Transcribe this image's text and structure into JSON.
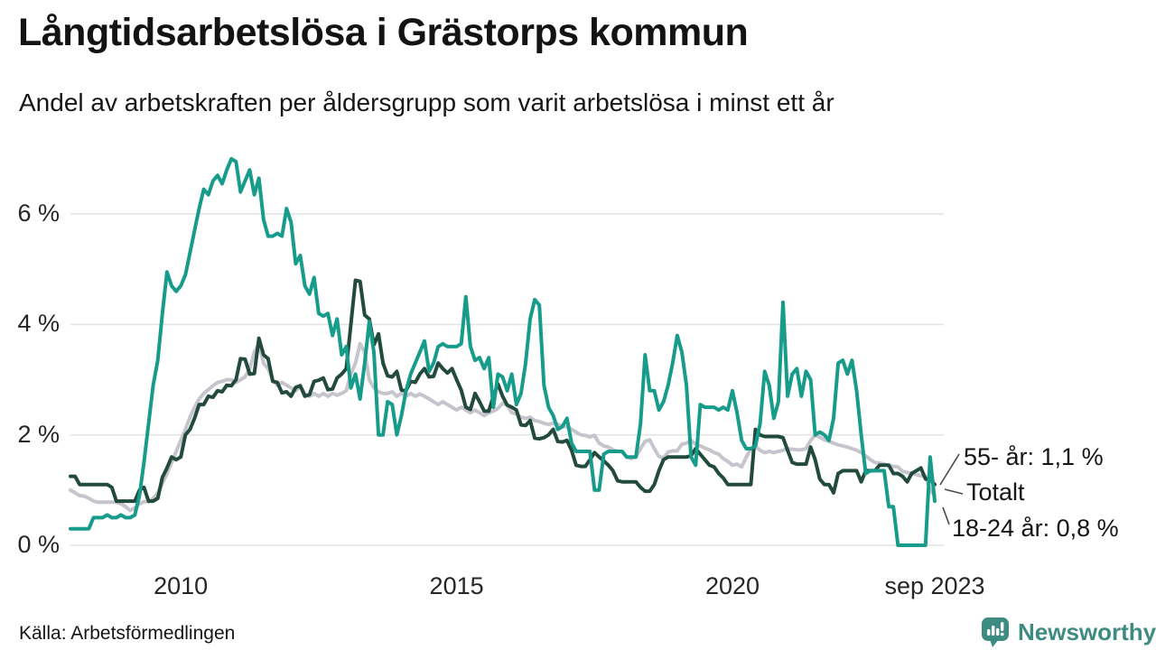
{
  "header": {
    "title": "Långtidsarbetslösa i Grästorps kommun",
    "subtitle": "Andel av arbetskraften per åldersgrupp som varit arbetslösa i minst ett år"
  },
  "footer": {
    "source": "Källa: Arbetsförmedlingen",
    "brand": "Newsworthy",
    "brand_color": "#3e8b81"
  },
  "colors": {
    "grid": "#e4e4e4",
    "leader": "#4a4a4a",
    "teal": "#179c8b",
    "dark_green": "#224a3d",
    "gray": "#c6c4cc"
  },
  "chart_data": {
    "type": "line",
    "title": "Långtidsarbetslösa i Grästorps kommun",
    "x_unit": "month",
    "x_start": "2008-01",
    "x_end": "2023-09",
    "ylim": [
      0,
      7.2
    ],
    "grid": true,
    "legend_position": "end-of-line-labels",
    "yticks": [
      {
        "label": "0 %",
        "value": 0
      },
      {
        "label": "2 %",
        "value": 2
      },
      {
        "label": "4 %",
        "value": 4
      },
      {
        "label": "6 %",
        "value": 6
      }
    ],
    "xticks": [
      {
        "label": "2010",
        "index": 24
      },
      {
        "label": "2015",
        "index": 84
      },
      {
        "label": "2020",
        "index": 144
      },
      {
        "label": "sep 2023",
        "index": 188
      }
    ],
    "series": [
      {
        "name": "Totalt",
        "color": "#c6c4cc",
        "end_label": "Totalt",
        "values": [
          1.0,
          0.95,
          0.9,
          0.89,
          0.85,
          0.8,
          0.78,
          0.78,
          0.78,
          0.78,
          0.78,
          0.75,
          0.7,
          0.63,
          0.68,
          0.75,
          0.79,
          0.79,
          0.85,
          0.95,
          1.12,
          1.3,
          1.5,
          1.7,
          1.9,
          2.1,
          2.32,
          2.5,
          2.65,
          2.75,
          2.82,
          2.89,
          2.95,
          2.97,
          3.0,
          3.0,
          2.95,
          3.0,
          3.05,
          3.2,
          3.5,
          3.65,
          3.3,
          3.2,
          3.0,
          2.9,
          2.95,
          2.9,
          2.85,
          2.8,
          2.88,
          2.75,
          2.7,
          2.75,
          2.7,
          2.75,
          2.7,
          2.75,
          2.72,
          2.75,
          2.8,
          3.1,
          3.3,
          3.65,
          3.5,
          3.0,
          2.85,
          2.78,
          2.75,
          2.75,
          2.78,
          2.7,
          2.75,
          2.7,
          2.75,
          2.7,
          2.74,
          2.7,
          2.65,
          2.6,
          2.55,
          2.6,
          2.55,
          2.5,
          2.45,
          2.5,
          2.45,
          2.4,
          2.45,
          2.4,
          2.35,
          2.4,
          2.43,
          2.48,
          2.57,
          2.54,
          2.4,
          2.38,
          2.32,
          2.3,
          2.32,
          2.26,
          2.24,
          2.21,
          2.19,
          2.21,
          2.19,
          2.16,
          2.14,
          2.1,
          2.05,
          2.0,
          1.99,
          1.96,
          1.99,
          1.85,
          1.8,
          1.78,
          1.73,
          1.7,
          1.69,
          1.6,
          1.57,
          1.6,
          1.75,
          1.88,
          1.91,
          1.75,
          1.61,
          1.58,
          1.69,
          1.71,
          1.71,
          1.83,
          1.85,
          1.9,
          1.83,
          1.8,
          1.76,
          1.73,
          1.68,
          1.65,
          1.57,
          1.52,
          1.45,
          1.47,
          1.42,
          1.6,
          1.75,
          1.79,
          1.72,
          1.68,
          1.7,
          1.68,
          1.7,
          1.72,
          1.75,
          1.74,
          1.73,
          1.73,
          1.75,
          1.9,
          1.99,
          1.96,
          1.91,
          1.88,
          1.85,
          1.82,
          1.8,
          1.78,
          1.75,
          1.72,
          1.68,
          1.62,
          1.55,
          1.5,
          1.49,
          1.47,
          1.44,
          1.43,
          1.42,
          1.34,
          1.32,
          1.3,
          1.28,
          1.26,
          1.25,
          1.0,
          0.9
        ]
      },
      {
        "name": "55- år",
        "color": "#224a3d",
        "end_label": "55- år: 1,1 %",
        "values": [
          1.25,
          1.25,
          1.1,
          1.1,
          1.1,
          1.1,
          1.1,
          1.1,
          1.1,
          1.05,
          0.8,
          0.8,
          0.8,
          0.8,
          0.8,
          1.0,
          1.05,
          0.8,
          0.8,
          0.85,
          1.23,
          1.4,
          1.6,
          1.55,
          1.6,
          2.0,
          2.1,
          2.3,
          2.55,
          2.55,
          2.7,
          2.68,
          2.8,
          2.78,
          2.9,
          2.89,
          3.0,
          3.38,
          3.37,
          3.1,
          3.11,
          3.75,
          3.45,
          3.38,
          2.97,
          2.95,
          2.76,
          2.78,
          2.7,
          2.86,
          2.89,
          2.7,
          2.73,
          2.97,
          2.99,
          3.03,
          2.82,
          2.83,
          3.03,
          3.1,
          3.2,
          4.0,
          4.8,
          4.78,
          4.17,
          4.1,
          3.63,
          3.83,
          3.3,
          3.07,
          3.05,
          3.15,
          2.81,
          2.8,
          2.97,
          2.95,
          3.1,
          3.2,
          3.05,
          3.06,
          3.3,
          3.2,
          3.12,
          3.2,
          3.0,
          2.81,
          2.5,
          2.46,
          2.75,
          2.6,
          2.43,
          2.43,
          2.7,
          2.92,
          2.7,
          2.54,
          2.5,
          2.45,
          2.18,
          2.17,
          2.26,
          1.94,
          1.93,
          1.95,
          2.0,
          2.1,
          1.88,
          1.87,
          1.9,
          1.72,
          1.45,
          1.43,
          1.43,
          1.55,
          1.68,
          1.6,
          1.53,
          1.45,
          1.35,
          1.17,
          1.15,
          1.15,
          1.15,
          1.15,
          1.05,
          0.98,
          0.98,
          1.1,
          1.35,
          1.55,
          1.6,
          1.6,
          1.6,
          1.6,
          1.6,
          1.62,
          1.75,
          1.65,
          1.55,
          1.45,
          1.42,
          1.3,
          1.22,
          1.1,
          1.1,
          1.1,
          1.1,
          1.1,
          1.1,
          2.1,
          2.0,
          1.97,
          1.97,
          1.97,
          1.97,
          1.95,
          1.72,
          1.5,
          1.47,
          1.47,
          1.47,
          1.78,
          1.55,
          1.2,
          1.1,
          1.1,
          0.95,
          1.3,
          1.35,
          1.35,
          1.35,
          1.35,
          1.15,
          1.35,
          1.35,
          1.35,
          1.45,
          1.45,
          1.45,
          1.3,
          1.3,
          1.25,
          1.15,
          1.3,
          1.35,
          1.4,
          1.2,
          1.2,
          1.1
        ]
      },
      {
        "name": "18-24 år",
        "color": "#179c8b",
        "end_label": "18-24 år: 0,8 %",
        "values": [
          0.3,
          0.3,
          0.3,
          0.3,
          0.3,
          0.5,
          0.5,
          0.5,
          0.55,
          0.5,
          0.5,
          0.55,
          0.5,
          0.5,
          0.55,
          0.9,
          1.5,
          2.2,
          2.9,
          3.35,
          4.2,
          4.95,
          4.7,
          4.6,
          4.7,
          4.9,
          5.3,
          5.7,
          6.1,
          6.45,
          6.35,
          6.6,
          6.7,
          6.55,
          6.8,
          7.0,
          6.95,
          6.4,
          6.6,
          6.8,
          6.35,
          6.65,
          5.9,
          5.6,
          5.6,
          5.65,
          5.6,
          6.1,
          5.85,
          5.1,
          5.25,
          4.7,
          4.55,
          4.85,
          4.2,
          4.15,
          4.2,
          3.8,
          4.1,
          3.45,
          3.6,
          2.85,
          3.1,
          2.65,
          3.3,
          4.05,
          3.5,
          2.0,
          2.0,
          2.6,
          2.55,
          2.0,
          2.35,
          2.8,
          3.1,
          3.3,
          3.5,
          3.7,
          3.15,
          3.3,
          3.6,
          3.65,
          3.6,
          3.6,
          3.6,
          3.65,
          4.5,
          3.6,
          3.35,
          3.4,
          3.2,
          3.4,
          2.5,
          3.1,
          3.05,
          2.8,
          3.1,
          2.55,
          2.75,
          3.3,
          4.1,
          4.45,
          4.35,
          2.9,
          2.5,
          2.35,
          2.1,
          2.15,
          2.3,
          1.85,
          1.7,
          1.7,
          1.7,
          1.7,
          1.0,
          1.0,
          1.65,
          1.7,
          1.7,
          1.7,
          1.7,
          1.6,
          1.6,
          1.6,
          2.2,
          3.45,
          2.8,
          2.8,
          2.45,
          2.6,
          2.9,
          3.3,
          3.8,
          3.5,
          2.9,
          1.6,
          1.45,
          2.55,
          2.5,
          2.5,
          2.5,
          2.45,
          2.5,
          2.45,
          2.8,
          2.4,
          1.9,
          1.75,
          1.75,
          1.8,
          2.2,
          3.15,
          2.9,
          2.3,
          2.6,
          4.4,
          2.7,
          3.1,
          3.2,
          2.7,
          3.15,
          3.0,
          2.0,
          2.05,
          2.0,
          1.9,
          2.3,
          3.3,
          3.35,
          3.1,
          3.35,
          2.8,
          2.0,
          1.3,
          1.35,
          1.35,
          1.35,
          1.35,
          0.7,
          0.7,
          0.0,
          0.0,
          0.0,
          0.0,
          0.0,
          0.0,
          0.0,
          1.6,
          0.8
        ]
      }
    ],
    "annotations": [
      {
        "label": "55- år: 1,1 %",
        "x": 1067,
        "y": 508,
        "leader": [
          1041,
          537,
          1062,
          503
        ]
      },
      {
        "label": "Totalt",
        "x": 1070,
        "y": 547,
        "leader": [
          1046,
          542,
          1066,
          547
        ]
      },
      {
        "label": "18-24 år: 0,8 %",
        "x": 1054,
        "y": 587,
        "leader": [
          1044,
          562,
          1051,
          581
        ]
      }
    ]
  }
}
